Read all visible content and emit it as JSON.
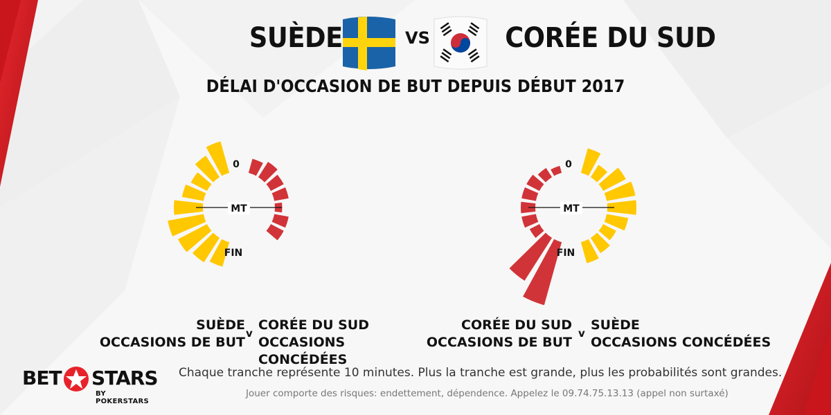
{
  "header": {
    "team_left": "SUÈDE",
    "vs": "VS",
    "team_right": "CORÉE DU SUD"
  },
  "subtitle": "DÉLAI D'OCCASION DE BUT DEPUIS DÉBUT 2017",
  "colors": {
    "attack": "#ffc800",
    "defense": "#d13438",
    "accent_red": "#e8222a"
  },
  "chart_data": [
    {
      "type": "radial-bar",
      "center_labels": {
        "top": "0",
        "middle": "MT",
        "bottom": "FIN"
      },
      "left_side": {
        "label": "Suède occasions de but",
        "color": "yellow",
        "values": [
          4.5,
          3.5,
          2.5,
          3.0,
          4.0,
          5.0,
          4.5,
          4.0,
          3.5
        ]
      },
      "right_side": {
        "label": "Corée du Sud occasions concédées",
        "color": "red",
        "values": [
          2.0,
          2.5,
          2.0,
          2.0,
          1.0,
          2.0,
          2.0,
          0,
          0
        ]
      },
      "legend_left": [
        "SUÈDE",
        "OCCASIONS DE BUT"
      ],
      "legend_right": [
        "CORÉE DU SUD",
        "OCCASIONS CONCÉDÉES"
      ],
      "legend_v": "v"
    },
    {
      "type": "radial-bar",
      "center_labels": {
        "top": "0",
        "middle": "MT",
        "bottom": "FIN"
      },
      "left_side": {
        "label": "Corée du Sud occasions de but",
        "color": "red",
        "values": [
          1.0,
          1.5,
          2.0,
          2.0,
          2.0,
          2.0,
          1.5,
          7.0,
          9.0
        ]
      },
      "right_side": {
        "label": "Suède occasions concédées",
        "color": "yellow",
        "values": [
          3.5,
          2.0,
          3.5,
          4.0,
          4.0,
          3.0,
          2.0,
          2.5,
          3.0
        ]
      },
      "legend_left": [
        "CORÉE DU SUD",
        "OCCASIONS DE BUT"
      ],
      "legend_right": [
        "SUÈDE",
        "OCCASIONS CONCÉDÉES"
      ],
      "legend_v": "v"
    }
  ],
  "footer": {
    "note": "Chaque tranche représente 10 minutes. Plus la tranche est grande, plus les probabilités sont grandes.",
    "disclaimer": "Jouer comporte des risques: endettement, dépendence. Appelez le 09.74.75.13.13 (appel non surtaxé)"
  },
  "logo": {
    "bet": "BET",
    "stars": "STARS",
    "by": "BY POKERSTARS"
  }
}
